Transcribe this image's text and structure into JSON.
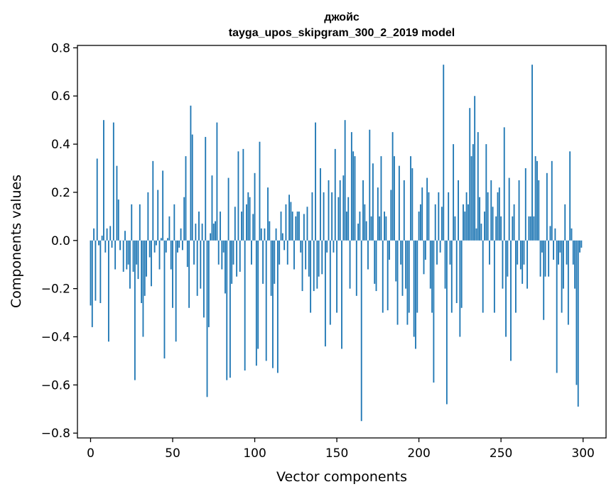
{
  "chart_data": {
    "type": "bar",
    "title": "джойс",
    "subtitle": "tayga_upos_skipgram_300_2_2019 model",
    "xlabel": "Vector components",
    "ylabel": "Components values",
    "xlim": [
      -8,
      314
    ],
    "ylim": [
      -0.82,
      0.81
    ],
    "xticks": [
      0,
      50,
      100,
      150,
      200,
      250,
      300
    ],
    "yticks": [
      -0.8,
      -0.6,
      -0.4,
      -0.2,
      0.0,
      0.2,
      0.4,
      0.6,
      0.8
    ],
    "xtick_labels": [
      "0",
      "50",
      "100",
      "150",
      "200",
      "250",
      "300"
    ],
    "ytick_labels": [
      "−0.8",
      "−0.6",
      "−0.4",
      "−0.2",
      "0.0",
      "0.2",
      "0.4",
      "0.6",
      "0.8"
    ],
    "grid": false,
    "legend": "none",
    "bar_color": "#1f77b4",
    "x": [
      0,
      1,
      2,
      3,
      4,
      5,
      6,
      7,
      8,
      9,
      10,
      11,
      12,
      13,
      14,
      15,
      16,
      17,
      18,
      19,
      20,
      21,
      22,
      23,
      24,
      25,
      26,
      27,
      28,
      29,
      30,
      31,
      32,
      33,
      34,
      35,
      36,
      37,
      38,
      39,
      40,
      41,
      42,
      43,
      44,
      45,
      46,
      47,
      48,
      49,
      50,
      51,
      52,
      53,
      54,
      55,
      56,
      57,
      58,
      59,
      60,
      61,
      62,
      63,
      64,
      65,
      66,
      67,
      68,
      69,
      70,
      71,
      72,
      73,
      74,
      75,
      76,
      77,
      78,
      79,
      80,
      81,
      82,
      83,
      84,
      85,
      86,
      87,
      88,
      89,
      90,
      91,
      92,
      93,
      94,
      95,
      96,
      97,
      98,
      99,
      100,
      101,
      102,
      103,
      104,
      105,
      106,
      107,
      108,
      109,
      110,
      111,
      112,
      113,
      114,
      115,
      116,
      117,
      118,
      119,
      120,
      121,
      122,
      123,
      124,
      125,
      126,
      127,
      128,
      129,
      130,
      131,
      132,
      133,
      134,
      135,
      136,
      137,
      138,
      139,
      140,
      141,
      142,
      143,
      144,
      145,
      146,
      147,
      148,
      149,
      150,
      151,
      152,
      153,
      154,
      155,
      156,
      157,
      158,
      159,
      160,
      161,
      162,
      163,
      164,
      165,
      166,
      167,
      168,
      169,
      170,
      171,
      172,
      173,
      174,
      175,
      176,
      177,
      178,
      179,
      180,
      181,
      182,
      183,
      184,
      185,
      186,
      187,
      188,
      189,
      190,
      191,
      192,
      193,
      194,
      195,
      196,
      197,
      198,
      199,
      200,
      201,
      202,
      203,
      204,
      205,
      206,
      207,
      208,
      209,
      210,
      211,
      212,
      213,
      214,
      215,
      216,
      217,
      218,
      219,
      220,
      221,
      222,
      223,
      224,
      225,
      226,
      227,
      228,
      229,
      230,
      231,
      232,
      233,
      234,
      235,
      236,
      237,
      238,
      239,
      240,
      241,
      242,
      243,
      244,
      245,
      246,
      247,
      248,
      249,
      250,
      251,
      252,
      253,
      254,
      255,
      256,
      257,
      258,
      259,
      260,
      261,
      262,
      263,
      264,
      265,
      266,
      267,
      268,
      269,
      270,
      271,
      272,
      273,
      274,
      275,
      276,
      277,
      278,
      279,
      280,
      281,
      282,
      283,
      284,
      285,
      286,
      287,
      288,
      289,
      290,
      291,
      292,
      293,
      294,
      295,
      296,
      297,
      298,
      299
    ],
    "values": [
      -0.27,
      -0.36,
      0.05,
      -0.25,
      0.34,
      -0.02,
      -0.26,
      0.02,
      0.5,
      -0.05,
      0.05,
      -0.42,
      0.06,
      -0.03,
      0.49,
      -0.12,
      0.31,
      0.17,
      -0.04,
      0.0,
      -0.13,
      0.04,
      -0.12,
      -0.1,
      -0.2,
      0.15,
      -0.13,
      -0.58,
      -0.1,
      -0.16,
      0.15,
      -0.26,
      -0.4,
      -0.23,
      -0.15,
      0.2,
      -0.07,
      -0.19,
      0.33,
      -0.05,
      -0.02,
      0.21,
      -0.12,
      0.01,
      0.29,
      -0.49,
      -0.05,
      0.01,
      0.1,
      -0.12,
      -0.28,
      0.15,
      -0.42,
      -0.05,
      -0.03,
      0.05,
      -0.04,
      0.18,
      0.35,
      -0.11,
      -0.28,
      0.56,
      0.44,
      -0.1,
      0.07,
      -0.23,
      0.12,
      -0.2,
      0.07,
      -0.32,
      0.43,
      -0.65,
      -0.36,
      0.03,
      0.27,
      0.07,
      0.08,
      0.49,
      -0.1,
      0.12,
      -0.12,
      -0.05,
      -0.22,
      -0.58,
      0.26,
      -0.57,
      -0.18,
      -0.1,
      0.14,
      -0.15,
      0.37,
      -0.13,
      0.12,
      0.38,
      -0.54,
      0.15,
      0.2,
      0.18,
      -0.1,
      0.11,
      0.28,
      -0.52,
      -0.45,
      0.41,
      0.05,
      -0.18,
      0.05,
      -0.5,
      0.22,
      0.08,
      -0.23,
      -0.53,
      -0.18,
      0.05,
      -0.55,
      -0.1,
      0.12,
      0.03,
      -0.04,
      0.15,
      -0.1,
      0.19,
      0.16,
      0.12,
      -0.12,
      0.1,
      0.12,
      0.12,
      -0.05,
      -0.21,
      0.11,
      -0.12,
      0.14,
      -0.15,
      -0.3,
      0.2,
      -0.21,
      0.49,
      -0.2,
      -0.15,
      0.3,
      -0.14,
      0.2,
      -0.44,
      -0.05,
      0.25,
      -0.35,
      0.2,
      -0.05,
      0.38,
      -0.3,
      0.18,
      0.25,
      -0.45,
      0.27,
      0.5,
      0.12,
      0.18,
      -0.2,
      0.45,
      0.37,
      0.35,
      -0.23,
      0.07,
      0.12,
      -0.75,
      0.25,
      0.15,
      0.08,
      -0.12,
      0.46,
      0.1,
      0.32,
      -0.18,
      -0.21,
      0.22,
      0.1,
      0.35,
      -0.3,
      0.12,
      0.1,
      -0.29,
      -0.08,
      0.21,
      0.45,
      0.35,
      -0.17,
      -0.35,
      0.31,
      -0.1,
      -0.23,
      0.25,
      -0.2,
      -0.35,
      -0.3,
      0.35,
      0.3,
      -0.4,
      -0.45,
      -0.3,
      0.12,
      0.15,
      0.22,
      -0.14,
      -0.08,
      0.26,
      0.2,
      -0.2,
      -0.3,
      -0.59,
      0.15,
      -0.1,
      0.2,
      -0.05,
      0.14,
      0.73,
      -0.2,
      -0.68,
      0.2,
      -0.1,
      -0.3,
      0.4,
      0.1,
      -0.26,
      0.25,
      -0.4,
      -0.28,
      0.15,
      0.12,
      0.2,
      0.15,
      0.55,
      0.35,
      0.4,
      0.6,
      0.05,
      0.45,
      0.18,
      0.07,
      -0.3,
      0.12,
      0.4,
      0.2,
      -0.1,
      0.25,
      0.14,
      -0.3,
      0.1,
      0.2,
      0.22,
      0.1,
      -0.2,
      0.47,
      -0.4,
      -0.15,
      0.26,
      -0.5,
      0.1,
      0.15,
      -0.3,
      -0.1,
      0.25,
      -0.12,
      -0.18,
      -0.1,
      0.3,
      -0.2,
      0.1,
      0.1,
      0.73,
      0.1,
      0.35,
      0.33,
      0.25,
      -0.15,
      -0.05,
      -0.33,
      -0.15,
      0.28,
      -0.15,
      0.06,
      0.33,
      -0.08,
      0.05,
      -0.55,
      -0.1,
      -0.05,
      -0.3,
      -0.2,
      0.15,
      -0.1,
      -0.35,
      0.37,
      0.05,
      -0.1,
      -0.2,
      -0.6,
      -0.69,
      -0.05,
      -0.03
    ]
  }
}
